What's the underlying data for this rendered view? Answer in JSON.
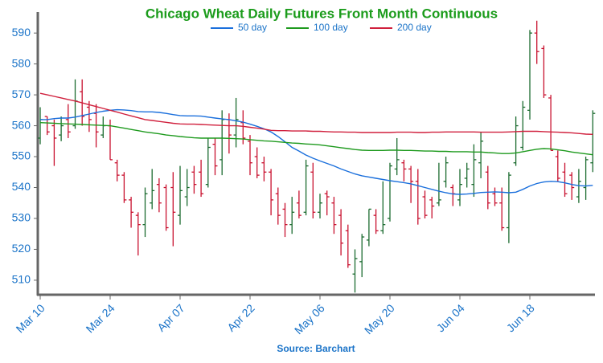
{
  "chart_data": {
    "type": "ohlc",
    "title": "Chicago Wheat Daily Futures Front Month Continuous",
    "source": "Source: Barchart",
    "categories": [
      "Mar 10",
      null,
      null,
      null,
      null,
      null,
      null,
      null,
      null,
      null,
      "Mar 24",
      null,
      null,
      null,
      null,
      null,
      null,
      null,
      null,
      null,
      "Apr 07",
      null,
      null,
      null,
      null,
      null,
      null,
      null,
      null,
      null,
      "Apr 22",
      null,
      null,
      null,
      null,
      null,
      null,
      null,
      null,
      null,
      "May 06",
      null,
      null,
      null,
      null,
      null,
      null,
      null,
      null,
      null,
      "May 20",
      null,
      null,
      null,
      null,
      null,
      null,
      null,
      null,
      null,
      "Jun 04",
      null,
      null,
      null,
      null,
      null,
      null,
      null,
      null,
      null,
      "Jun 18",
      null,
      null,
      null,
      null,
      null,
      null,
      null,
      null,
      null
    ],
    "up_color": "#1b6b2f",
    "down_color": "#c8102e",
    "open": [
      556,
      563,
      560,
      557,
      562,
      560,
      571,
      566,
      564,
      557,
      560,
      548,
      544,
      536,
      531,
      528,
      535,
      541,
      540,
      540,
      531,
      537,
      545,
      545,
      541,
      554,
      549,
      562,
      557,
      561,
      555,
      550,
      548,
      545,
      538,
      533,
      528,
      535,
      532,
      545,
      532,
      538,
      535,
      531,
      526,
      512,
      516,
      523,
      531,
      526,
      530,
      546,
      548,
      546,
      542,
      537,
      536,
      535,
      542,
      540,
      536,
      543,
      541,
      548,
      545,
      538,
      535,
      527,
      548,
      553,
      565,
      590,
      585,
      569,
      550,
      545,
      544,
      537,
      540,
      548
    ],
    "high": [
      566,
      563,
      562,
      563,
      567,
      575,
      575,
      568,
      567,
      563,
      562,
      549,
      545,
      537,
      532,
      540,
      546,
      543,
      541,
      545,
      547,
      546,
      547,
      549,
      556,
      556,
      565,
      564,
      569,
      565,
      557,
      553,
      550,
      546,
      540,
      535,
      537,
      539,
      549,
      548,
      538,
      539,
      537,
      533,
      528,
      520,
      525,
      533,
      533,
      542,
      548,
      556,
      549,
      547,
      546,
      539,
      537,
      548,
      550,
      541,
      546,
      548,
      554,
      558,
      547,
      540,
      540,
      545,
      563,
      568,
      591,
      594,
      586,
      570,
      552,
      548,
      545,
      546,
      550,
      565
    ],
    "low": [
      554,
      557,
      547,
      555,
      556,
      559,
      560,
      558,
      553,
      556,
      549,
      542,
      535,
      527,
      518,
      524,
      533,
      532,
      526,
      521,
      528,
      534,
      538,
      537,
      540,
      544,
      544,
      551,
      553,
      554,
      544,
      543,
      542,
      531,
      528,
      524,
      525,
      530,
      531,
      530,
      530,
      531,
      525,
      518,
      514,
      506,
      511,
      521,
      525,
      525,
      529,
      544,
      542,
      535,
      528,
      530,
      530,
      534,
      540,
      534,
      534,
      540,
      537,
      543,
      533,
      534,
      526,
      522,
      547,
      552,
      562,
      580,
      569,
      552,
      542,
      537,
      536,
      535,
      536,
      545
    ],
    "close": [
      562,
      558,
      556,
      560,
      558,
      568,
      563,
      562,
      558,
      560,
      549,
      544,
      536,
      532,
      528,
      538,
      539,
      535,
      527,
      532,
      539,
      540,
      541,
      538,
      553,
      547,
      562,
      557,
      562,
      556,
      548,
      544,
      545,
      536,
      531,
      528,
      532,
      531,
      547,
      532,
      535,
      537,
      528,
      522,
      515,
      517,
      524,
      533,
      526,
      528,
      547,
      549,
      546,
      542,
      530,
      531,
      534,
      536,
      548,
      538,
      541,
      546,
      549,
      555,
      535,
      535,
      527,
      544,
      560,
      566,
      590,
      584,
      570,
      552,
      543,
      538,
      540,
      542,
      549,
      564
    ],
    "lines": [
      {
        "name": "50 day",
        "color": "#1a6fdc",
        "values": [
          562,
          562,
          562.3,
          562.5,
          562.5,
          562.8,
          563.3,
          563.8,
          564.3,
          564.7,
          565,
          565.2,
          565.1,
          564.9,
          564.6,
          564.5,
          564.5,
          564.3,
          564,
          563.6,
          563.3,
          563.2,
          563.2,
          563.1,
          562.8,
          562.5,
          562.2,
          562,
          561.6,
          561.2,
          560.5,
          559.8,
          559,
          558,
          556.5,
          554.8,
          553,
          551.8,
          550.5,
          549.5,
          548.6,
          547.8,
          547,
          546,
          545.2,
          544.4,
          543.8,
          543.4,
          543,
          542.6,
          542.2,
          541.9,
          541.6,
          541.2,
          540.6,
          540,
          539.4,
          538.8,
          538.3,
          537.9,
          537.8,
          537.9,
          538.1,
          538.4,
          538.5,
          538.6,
          538.5,
          538.3,
          538.5,
          539.4,
          540.5,
          541.3,
          541.8,
          542,
          541.9,
          541.5,
          541,
          540.6,
          540.5,
          540.7
        ]
      },
      {
        "name": "100 day",
        "color": "#1e9a1e",
        "values": [
          561,
          560.9,
          560.8,
          560.7,
          560.6,
          560.5,
          560.4,
          560.3,
          560.2,
          560.1,
          560,
          559.6,
          559.2,
          558.8,
          558.4,
          558,
          557.7,
          557.4,
          557,
          556.8,
          556.5,
          556.3,
          556.1,
          556,
          556,
          556,
          556,
          555.9,
          555.8,
          555.7,
          555.5,
          555.3,
          555.1,
          555,
          554.8,
          554.6,
          554.4,
          554.3,
          554.1,
          554,
          553.8,
          553.5,
          553.2,
          552.9,
          552.6,
          552.3,
          552.1,
          552,
          552,
          552,
          552.1,
          552.1,
          552,
          552,
          551.9,
          551.8,
          551.8,
          551.7,
          551.7,
          551.6,
          551.6,
          551.6,
          551.5,
          551.5,
          551.3,
          551.2,
          551,
          551,
          551.2,
          551.6,
          552,
          552.4,
          552.6,
          552.5,
          552.2,
          551.9,
          551.5,
          551.2,
          550.9,
          550.6
        ]
      },
      {
        "name": "200 day",
        "color": "#d01f3c",
        "values": [
          570.5,
          570,
          569.5,
          569,
          568.5,
          568,
          567.4,
          566.8,
          566.2,
          565.6,
          565,
          564.4,
          563.8,
          563.2,
          562.6,
          562,
          561.7,
          561.4,
          561.1,
          560.8,
          560.6,
          560.5,
          560.5,
          560.4,
          560.3,
          560.2,
          560.1,
          560,
          560,
          559.8,
          559.5,
          559.2,
          558.9,
          558.5,
          558.4,
          558.4,
          558.3,
          558.3,
          558.3,
          558.2,
          558.2,
          558.1,
          558,
          558,
          557.9,
          557.9,
          557.8,
          557.8,
          557.8,
          557.8,
          557.8,
          557.9,
          557.9,
          557.9,
          557.8,
          557.8,
          557.9,
          557.9,
          558,
          558,
          558,
          558,
          558,
          557.9,
          557.9,
          557.9,
          557.9,
          558,
          558.1,
          558.2,
          558.2,
          558.2,
          558.1,
          558,
          557.9,
          557.8,
          557.7,
          557.5,
          557.3,
          557.2
        ]
      }
    ],
    "ylim": [
      505.3,
      596.8
    ],
    "yticks": [
      510,
      520,
      530,
      540,
      550,
      560,
      570,
      580,
      590
    ],
    "grid": false
  }
}
